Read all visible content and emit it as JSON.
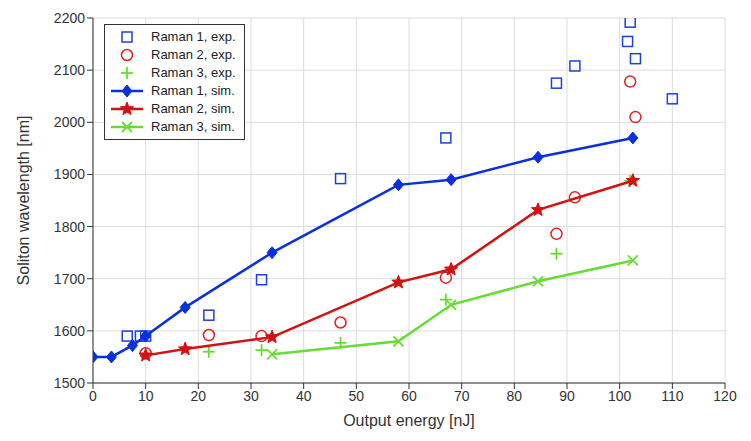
{
  "chart_data": {
    "type": "line",
    "x_label": "Output energy [nJ]",
    "y_label": "Soliton wavelength [nm]",
    "xlim": [
      0,
      120
    ],
    "xticks": [
      0,
      10,
      20,
      30,
      40,
      50,
      60,
      70,
      80,
      90,
      100,
      110,
      120
    ],
    "ylim": [
      1500,
      2200
    ],
    "yticks": [
      1500,
      1600,
      1700,
      1800,
      1900,
      2000,
      2100,
      2200
    ],
    "grid": true,
    "legend": "upper left",
    "series": [
      {
        "name": "Raman 1, exp.",
        "type": "scatter",
        "marker": "square",
        "color": "#1f3fe0",
        "x": [
          6.5,
          9,
          10,
          22,
          32,
          47,
          67,
          88,
          91.5,
          101.5,
          102,
          103,
          110
        ],
        "values": [
          1590,
          1590,
          1590,
          1630,
          1698,
          1892,
          1970,
          2075,
          2108,
          2155,
          2192,
          2122,
          2045
        ]
      },
      {
        "name": "Raman 2, exp.",
        "type": "scatter",
        "marker": "circle",
        "color": "#e02020",
        "x": [
          10,
          22,
          32,
          47,
          67,
          88,
          91.5,
          102,
          103
        ],
        "values": [
          1557,
          1592,
          1590,
          1616,
          1702,
          1786,
          1856,
          2078,
          2010
        ]
      },
      {
        "name": "Raman 3, exp.",
        "type": "scatter",
        "marker": "plus",
        "color": "#66dd33",
        "x": [
          22,
          32,
          47,
          67,
          88,
          102
        ],
        "values": [
          1560,
          1563,
          1577,
          1660,
          1748,
          1888
        ]
      },
      {
        "name": "Raman 1, sim.",
        "type": "line",
        "marker": "diamond",
        "color": "#0a2fe0",
        "x": [
          0,
          3.5,
          7.5,
          10,
          17.5,
          34,
          58,
          68,
          84.5,
          102.5
        ],
        "values": [
          1550,
          1550,
          1572,
          1590,
          1645,
          1750,
          1880,
          1890,
          1933,
          1970
        ]
      },
      {
        "name": "Raman 2, sim.",
        "type": "line",
        "marker": "star",
        "color": "#d41010",
        "x": [
          10,
          17.5,
          34,
          58,
          68,
          84.5,
          102.5
        ],
        "values": [
          1553,
          1565,
          1588,
          1693,
          1718,
          1832,
          1888
        ]
      },
      {
        "name": "Raman 3, sim.",
        "type": "line",
        "marker": "x",
        "color": "#66dd33",
        "x": [
          34,
          58,
          68,
          84.5,
          102.5
        ],
        "values": [
          1555,
          1580,
          1650,
          1695,
          1735
        ]
      }
    ]
  }
}
